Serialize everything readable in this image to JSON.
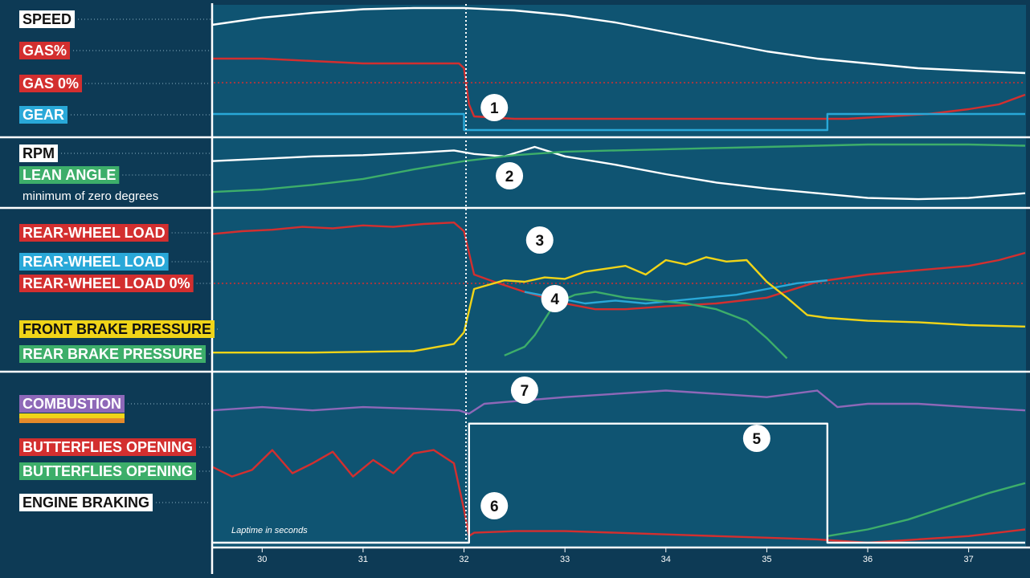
{
  "chart_data": {
    "type": "line",
    "xlabel": "Laptime in seconds",
    "xlim": [
      29.52,
      37.56
    ],
    "x_ticks": [
      "30",
      "31",
      "32",
      "33",
      "34",
      "35",
      "36",
      "37"
    ],
    "panels": [
      {
        "id": "p1",
        "labels": [
          {
            "text": "SPEED",
            "bg": "#ffffff",
            "fg": "#111111",
            "row": 1
          },
          {
            "text": "GAS%",
            "bg": "#d32f2f",
            "fg": "#ffffff",
            "row": 2
          },
          {
            "text": "GAS 0%",
            "bg": "#d32f2f",
            "fg": "#ffffff",
            "row": 3
          },
          {
            "text": "GEAR",
            "bg": "#29a8d8",
            "fg": "#ffffff",
            "row": 4
          }
        ],
        "series": [
          {
            "name": "SPEED",
            "color": "#ffffff",
            "x": [
              29.5,
              30.0,
              30.5,
              31.0,
              31.5,
              31.9,
              32.0,
              32.5,
              33.0,
              33.5,
              34.0,
              34.5,
              35.0,
              35.5,
              36.0,
              36.5,
              37.0,
              37.56
            ],
            "y": [
              86,
              92,
              96,
              99,
              100,
              100,
              100,
              98,
              94,
              88,
              80,
              72,
              64,
              58,
              54,
              50,
              48,
              46
            ]
          },
          {
            "name": "GAS%",
            "color": "#d32f2f",
            "x": [
              29.5,
              30.0,
              30.5,
              31.0,
              31.5,
              31.95,
              32.0,
              32.05,
              32.1,
              32.5,
              33.0,
              34.0,
              35.0,
              35.8,
              36.2,
              36.6,
              37.0,
              37.3,
              37.56
            ],
            "y": [
              58,
              58,
              56,
              54,
              54,
              54,
              50,
              20,
              10,
              8,
              8,
              8,
              8,
              8,
              10,
              12,
              16,
              20,
              28
            ]
          },
          {
            "name": "GEAR",
            "color": "#29a8d8",
            "x": [
              29.5,
              32.0,
              32.0,
              35.6,
              35.6,
              37.56
            ],
            "y": [
              3,
              3,
              2,
              2,
              3,
              3
            ]
          }
        ]
      },
      {
        "id": "p2",
        "labels": [
          {
            "text": "RPM",
            "bg": "#ffffff",
            "fg": "#111111",
            "row": 1
          },
          {
            "text": "LEAN ANGLE",
            "bg": "#3dae6a",
            "fg": "#ffffff",
            "row": 2
          },
          {
            "text": "minimum of zero degrees",
            "bg": "",
            "fg": "#ffffff",
            "row": 3
          }
        ],
        "series": [
          {
            "name": "RPM",
            "color": "#ffffff",
            "x": [
              29.5,
              30.0,
              30.5,
              31.0,
              31.5,
              31.9,
              32.1,
              32.4,
              32.7,
              33.0,
              33.5,
              34.0,
              34.5,
              35.0,
              35.5,
              36.0,
              36.5,
              37.0,
              37.56
            ],
            "y": [
              72,
              76,
              80,
              82,
              86,
              90,
              84,
              80,
              96,
              80,
              66,
              50,
              36,
              26,
              18,
              10,
              8,
              10,
              18
            ]
          },
          {
            "name": "LEAN ANGLE",
            "color": "#3dae6a",
            "x": [
              29.5,
              30.0,
              30.5,
              31.0,
              31.5,
              32.0,
              32.5,
              33.0,
              33.5,
              34.0,
              34.5,
              35.0,
              35.5,
              36.0,
              36.5,
              37.0,
              37.56
            ],
            "y": [
              20,
              24,
              32,
              42,
              58,
              72,
              82,
              88,
              90,
              92,
              94,
              96,
              98,
              100,
              100,
              100,
              98
            ]
          }
        ]
      },
      {
        "id": "p3",
        "labels": [
          {
            "text": "REAR-WHEEL LOAD",
            "bg": "#d32f2f",
            "fg": "#ffffff",
            "row": 1
          },
          {
            "text": "REAR-WHEEL LOAD",
            "bg": "#29a8d8",
            "fg": "#ffffff",
            "row": 2
          },
          {
            "text": "REAR-WHEEL LOAD 0%",
            "bg": "#d32f2f",
            "fg": "#ffffff",
            "row": 3
          },
          {
            "text": "FRONT BRAKE PRESSURE",
            "bg": "#f0d418",
            "fg": "#111111",
            "row": 4
          },
          {
            "text": "REAR BRAKE PRESSURE",
            "bg": "#3dae6a",
            "fg": "#ffffff",
            "row": 5
          }
        ],
        "series": [
          {
            "name": "REAR-WHEEL LOAD",
            "color": "#d32f2f",
            "x": [
              29.5,
              29.8,
              30.1,
              30.4,
              30.7,
              31.0,
              31.3,
              31.6,
              31.9,
              32.0,
              32.1,
              32.3,
              32.6,
              33.0,
              33.3,
              33.6,
              34.0,
              34.5,
              35.0,
              35.5,
              36.0,
              36.5,
              37.0,
              37.3,
              37.56
            ],
            "y": [
              88,
              90,
              91,
              93,
              92,
              94,
              93,
              95,
              96,
              90,
              60,
              55,
              48,
              40,
              36,
              36,
              38,
              40,
              44,
              55,
              60,
              63,
              66,
              70,
              75
            ]
          },
          {
            "name": "REAR-WHEEL LOAD",
            "color": "#29a8d8",
            "x": [
              32.6,
              32.9,
              33.2,
              33.5,
              33.8,
              34.1,
              34.4,
              34.7,
              35.0,
              35.3,
              35.6
            ],
            "y": [
              48,
              44,
              40,
              42,
              40,
              42,
              44,
              46,
              50,
              54,
              56
            ]
          },
          {
            "name": "FRONT BRAKE PRESSURE",
            "color": "#f0d418",
            "x": [
              29.5,
              30.5,
              31.5,
              31.9,
              32.0,
              32.1,
              32.2,
              32.4,
              32.6,
              32.8,
              33.0,
              33.2,
              33.4,
              33.6,
              33.8,
              34.0,
              34.2,
              34.4,
              34.6,
              34.8,
              35.0,
              35.2,
              35.4,
              35.6,
              36.0,
              36.5,
              37.0,
              37.56
            ],
            "y": [
              6,
              6,
              7,
              12,
              20,
              50,
              52,
              56,
              55,
              58,
              57,
              62,
              64,
              66,
              60,
              70,
              67,
              72,
              69,
              70,
              55,
              44,
              32,
              30,
              28,
              27,
              25,
              24
            ]
          },
          {
            "name": "REAR BRAKE PRESSURE",
            "color": "#3dae6a",
            "x": [
              32.4,
              32.6,
              32.7,
              32.9,
              33.1,
              33.3,
              33.6,
              33.9,
              34.2,
              34.5,
              34.8,
              35.0,
              35.2
            ],
            "y": [
              4,
              10,
              18,
              40,
              46,
              48,
              44,
              42,
              40,
              36,
              28,
              16,
              2
            ]
          }
        ]
      },
      {
        "id": "p4",
        "labels": [
          {
            "text": "COMBUSTION",
            "bg": "#8e68b8",
            "fg": "#ffffff",
            "row": 1
          },
          {
            "text": "BUTTERFLIES OPENING",
            "bg": "#d32f2f",
            "fg": "#ffffff",
            "row": 2
          },
          {
            "text": "BUTTERFLIES OPENING",
            "bg": "#3dae6a",
            "fg": "#ffffff",
            "row": 3
          },
          {
            "text": "ENGINE BRAKING",
            "bg": "#ffffff",
            "fg": "#111111",
            "row": 4
          }
        ],
        "series": [
          {
            "name": "COMBUSTION",
            "color": "#8e68b8",
            "x": [
              29.5,
              30.0,
              30.5,
              31.0,
              31.5,
              31.95,
              32.05,
              32.2,
              32.6,
              33.0,
              33.5,
              34.0,
              34.5,
              35.0,
              35.5,
              35.7,
              36.0,
              36.5,
              37.0,
              37.56
            ],
            "y": [
              80,
              82,
              80,
              82,
              81,
              80,
              78,
              84,
              86,
              88,
              90,
              92,
              90,
              88,
              92,
              82,
              84,
              84,
              82,
              80
            ]
          },
          {
            "name": "BUTTERFLIES OPENING",
            "color": "#d32f2f",
            "x": [
              29.5,
              29.7,
              29.9,
              30.1,
              30.3,
              30.5,
              30.7,
              30.9,
              31.1,
              31.3,
              31.5,
              31.7,
              31.9,
              32.0,
              32.05,
              32.1,
              32.5,
              33.0,
              33.5,
              34.0,
              34.5,
              35.0,
              35.5,
              36.0,
              36.5,
              37.0,
              37.56
            ],
            "y": [
              46,
              40,
              44,
              56,
              42,
              48,
              55,
              40,
              50,
              42,
              54,
              56,
              48,
              20,
              4,
              6,
              7,
              7,
              6,
              5,
              4,
              3,
              2,
              0,
              2,
              4,
              8
            ]
          },
          {
            "name": "BUTTERFLIES OPENING",
            "color": "#3dae6a",
            "x": [
              35.6,
              36.0,
              36.4,
              36.8,
              37.2,
              37.56
            ],
            "y": [
              4,
              8,
              14,
              22,
              30,
              36
            ]
          },
          {
            "name": "ENGINE BRAKING",
            "color": "#ffffff",
            "x": [
              29.5,
              32.05,
              32.05,
              35.6,
              35.6,
              37.56
            ],
            "y": [
              0,
              0,
              72,
              72,
              0,
              0
            ]
          }
        ]
      }
    ],
    "annotations": [
      {
        "text": "1",
        "x": 32.3,
        "panel": "p1"
      },
      {
        "text": "2",
        "x": 32.45,
        "panel": "p2"
      },
      {
        "text": "3",
        "x": 32.75,
        "panel": "p3"
      },
      {
        "text": "4",
        "x": 32.9,
        "panel": "p3"
      },
      {
        "text": "5",
        "x": 34.9,
        "panel": "p4"
      },
      {
        "text": "6",
        "x": 32.3,
        "panel": "p4"
      },
      {
        "text": "7",
        "x": 32.6,
        "panel": "p4"
      }
    ]
  }
}
